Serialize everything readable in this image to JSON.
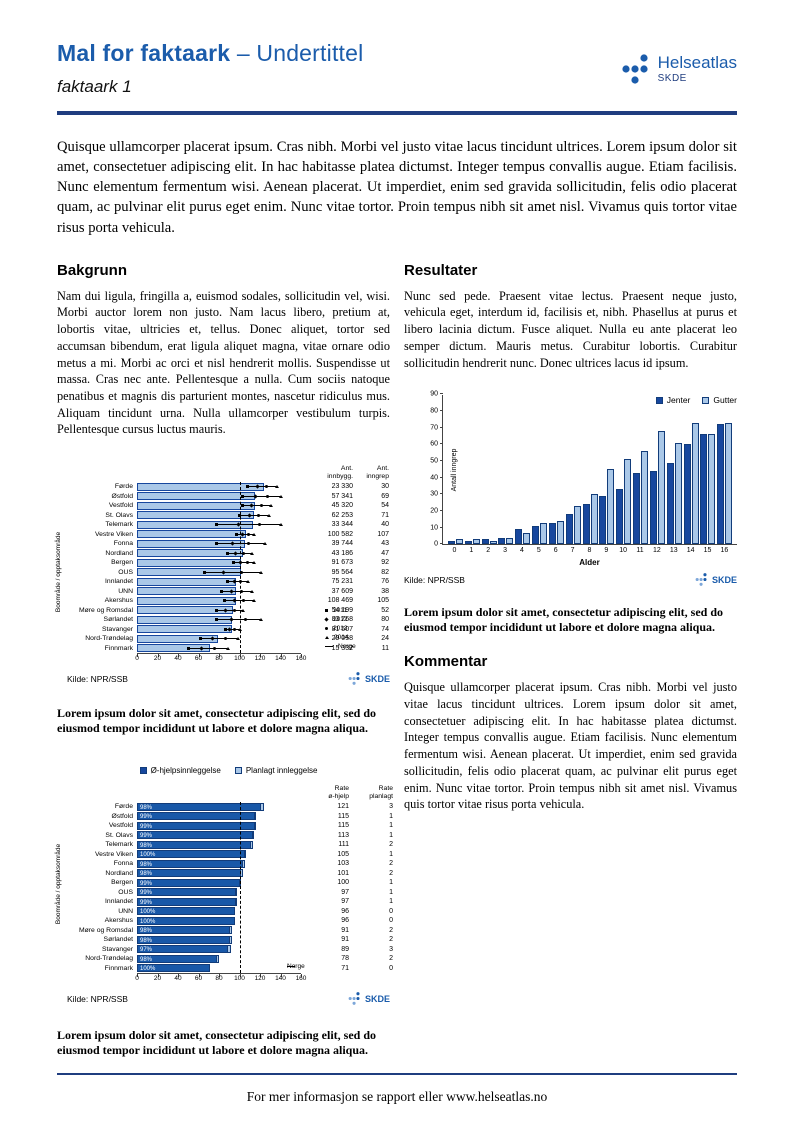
{
  "header": {
    "title": "Mal for faktaark",
    "title_suffix": "– Undertittel",
    "subtitle": "faktaark 1",
    "logo_name": "Helseatlas",
    "logo_sub": "SKDE"
  },
  "intro": "Quisque ullamcorper placerat ipsum. Cras nibh. Morbi vel justo vitae lacus tincidunt ultrices. Lorem ipsum dolor sit amet, consectetuer adipiscing elit. In hac habitasse platea dictumst. Integer tempus convallis augue. Etiam facilisis. Nunc elementum fermentum wisi. Aenean placerat. Ut imperdiet, enim sed gravida sollicitudin, felis odio placerat quam, ac pulvinar elit purus eget enim. Nunc vitae tortor. Proin tempus nibh sit amet nisl. Vivamus quis tortor vitae risus porta vehicula.",
  "sections": {
    "bakgrunn": {
      "heading": "Bakgrunn",
      "body": "Nam dui ligula, fringilla a, euismod sodales, sollicitudin vel, wisi. Morbi auctor lorem non justo. Nam lacus libero, pretium at, lobortis vitae, ultricies et, tellus. Donec aliquet, tortor sed accumsan bibendum, erat ligula aliquet magna, vitae ornare odio metus a mi. Morbi ac orci et nisl hendrerit mollis. Suspendisse ut massa. Cras nec ante. Pellentesque a nulla. Cum sociis natoque penatibus et magnis dis parturient montes, nascetur ridiculus mus. Aliquam tincidunt urna. Nulla ullamcorper vestibulum turpis. Pellentesque cursus luctus mauris."
    },
    "resultater": {
      "heading": "Resultater",
      "body": "Nunc sed pede. Praesent vitae lectus. Praesent neque justo, vehicula eget, interdum id, facilisis et, nibh. Phasellus at purus et libero lacinia dictum. Fusce aliquet. Nulla eu ante placerat leo semper dictum. Mauris metus. Curabitur lobortis. Curabitur sollicitudin hendrerit nunc. Donec ultrices lacus id ipsum."
    },
    "kommentar": {
      "heading": "Kommentar",
      "body": "Quisque ullamcorper placerat ipsum. Cras nibh. Morbi vel justo vitae lacus tincidunt ultrices. Lorem ipsum dolor sit amet, consectetuer adipiscing elit. In hac habitasse platea dictumst. Integer tempus convallis augue. Etiam facilisis. Nunc elementum fermentum wisi. Aenean placerat. Ut imperdiet, enim sed gravida sollicitudin, felis odio placerat quam, ac pulvinar elit purus eget enim. Nunc vitae tortor. Proin tempus nibh sit amet nisl. Vivamus quis tortor vitae risus porta vehicula."
    }
  },
  "captions": {
    "chart1": "Lorem ipsum dolor sit amet, consectetur adipiscing elit, sed do eiusmod tempor incididunt ut labore et dolore magna aliqua.",
    "chart2": "Lorem ipsum dolor sit amet, consectetur adipiscing elit, sed do eiusmod tempor incididunt ut labore et dolore magna aliqua.",
    "chart3": "Lorem ipsum dolor sit amet, consectetur adipiscing elit, sed do eiusmod tempor incididunt ut labore et dolore magna aliqua."
  },
  "footer": {
    "text": "For mer informasjon se rapport eller www.helseatlas.no"
  },
  "colors": {
    "brand_blue": "#1b5cab",
    "navy": "#1f3d7f",
    "bar_dark": "#17479e",
    "bar_light": "#aac8e8"
  },
  "chart_data": [
    {
      "type": "bar",
      "orientation": "horizontal",
      "ylabel": "Boområde / opptaksområde",
      "xlim": [
        0,
        160
      ],
      "xticks": [
        0,
        20,
        40,
        60,
        80,
        100,
        120,
        140,
        160
      ],
      "reference_line": {
        "label": "Norge",
        "value": 100
      },
      "col_headers": [
        "Ant.\ninnbygg.",
        "Ant.\ninngrep"
      ],
      "legend": [
        {
          "label": "2011",
          "marker": "square"
        },
        {
          "label": "2012",
          "marker": "diamond"
        },
        {
          "label": "2013",
          "marker": "circle"
        },
        {
          "label": "2014",
          "marker": "triangle"
        },
        {
          "label": "Norge",
          "marker": "dash"
        }
      ],
      "source": "Kilde: NPR/SSB",
      "rows": [
        {
          "label": "Førde",
          "bar": 124,
          "lo": 108,
          "hi": 136,
          "innbygg": "23 330",
          "inngrep": "30"
        },
        {
          "label": "Østfold",
          "bar": 115,
          "lo": 103,
          "hi": 140,
          "innbygg": "57 341",
          "inngrep": "69"
        },
        {
          "label": "Vestfold",
          "bar": 115,
          "lo": 103,
          "hi": 130,
          "innbygg": "45 320",
          "inngrep": "54"
        },
        {
          "label": "St. Olavs",
          "bar": 114,
          "lo": 100,
          "hi": 128,
          "innbygg": "62 253",
          "inngrep": "71"
        },
        {
          "label": "Telemark",
          "bar": 113,
          "lo": 78,
          "hi": 140,
          "innbygg": "33 344",
          "inngrep": "40"
        },
        {
          "label": "Vestre Viken",
          "bar": 106,
          "lo": 97,
          "hi": 114,
          "innbygg": "100 582",
          "inngrep": "107"
        },
        {
          "label": "Fonna",
          "bar": 105,
          "lo": 78,
          "hi": 124,
          "innbygg": "39 744",
          "inngrep": "43"
        },
        {
          "label": "Nordland",
          "bar": 103,
          "lo": 88,
          "hi": 112,
          "innbygg": "43 186",
          "inngrep": "47"
        },
        {
          "label": "Bergen",
          "bar": 101,
          "lo": 94,
          "hi": 114,
          "innbygg": "91 673",
          "inngrep": "92"
        },
        {
          "label": "OUS",
          "bar": 101,
          "lo": 66,
          "hi": 120,
          "innbygg": "95 564",
          "inngrep": "82"
        },
        {
          "label": "Innlandet",
          "bar": 97,
          "lo": 88,
          "hi": 108,
          "innbygg": "75 231",
          "inngrep": "76"
        },
        {
          "label": "UNN",
          "bar": 97,
          "lo": 82,
          "hi": 112,
          "innbygg": "37 609",
          "inngrep": "38"
        },
        {
          "label": "Akershus",
          "bar": 97,
          "lo": 85,
          "hi": 114,
          "innbygg": "108 469",
          "inngrep": "105"
        },
        {
          "label": "Møre og Romsdal",
          "bar": 94,
          "lo": 78,
          "hi": 103,
          "innbygg": "54 199",
          "inngrep": "52"
        },
        {
          "label": "Sørlandet",
          "bar": 93,
          "lo": 78,
          "hi": 120,
          "innbygg": "83 768",
          "inngrep": "80"
        },
        {
          "label": "Stavanger",
          "bar": 93,
          "lo": 86,
          "hi": 100,
          "innbygg": "81 507",
          "inngrep": "74"
        },
        {
          "label": "Nord-Trøndelag",
          "bar": 79,
          "lo": 62,
          "hi": 98,
          "innbygg": "29 058",
          "inngrep": "24"
        },
        {
          "label": "Finnmark",
          "bar": 71,
          "lo": 50,
          "hi": 88,
          "innbygg": "15 332",
          "inngrep": "11"
        }
      ]
    },
    {
      "type": "bar",
      "orientation": "vertical",
      "categories": [
        "0",
        "1",
        "2",
        "3",
        "4",
        "5",
        "6",
        "7",
        "8",
        "9",
        "10",
        "11",
        "12",
        "13",
        "14",
        "15",
        "16"
      ],
      "series": [
        {
          "name": "Jenter",
          "color": "#17479e",
          "values": [
            2,
            2,
            3,
            4,
            9,
            11,
            13,
            18,
            24,
            29,
            33,
            43,
            44,
            49,
            60,
            66,
            72
          ]
        },
        {
          "name": "Gutter",
          "color": "#aac8e8",
          "values": [
            3,
            3,
            2,
            4,
            7,
            13,
            14,
            23,
            30,
            45,
            51,
            56,
            68,
            61,
            73,
            66,
            73
          ]
        }
      ],
      "xlabel": "Alder",
      "ylabel": "Antall inngrep",
      "ylim": [
        0,
        90
      ],
      "yticks": [
        0,
        10,
        20,
        30,
        40,
        50,
        60,
        70,
        80,
        90
      ],
      "legend_position": "top-right",
      "source": "Kilde: NPR/SSB"
    },
    {
      "type": "bar",
      "orientation": "horizontal-stacked",
      "ylabel": "Boområde / opptaksområde",
      "xlim": [
        0,
        160
      ],
      "xticks": [
        0,
        20,
        40,
        60,
        80,
        100,
        120,
        140,
        160
      ],
      "reference_line": {
        "label": "Norge",
        "value": 100
      },
      "legend": [
        {
          "label": "Ø-hjelpsinnleggelse",
          "color": "#17479e"
        },
        {
          "label": "Planlagt innleggelse",
          "color": "#aac8e8"
        }
      ],
      "col_headers": [
        "Rate\nø-hjelp",
        "Rate\nplanlagt"
      ],
      "source": "Kilde: NPR/SSB",
      "rows": [
        {
          "label": "Førde",
          "pct": "98%",
          "ohjelp": 121,
          "planlagt": 3
        },
        {
          "label": "Østfold",
          "pct": "99%",
          "ohjelp": 115,
          "planlagt": 1
        },
        {
          "label": "Vestfold",
          "pct": "99%",
          "ohjelp": 115,
          "planlagt": 1
        },
        {
          "label": "St. Olavs",
          "pct": "99%",
          "ohjelp": 113,
          "planlagt": 1
        },
        {
          "label": "Telemark",
          "pct": "98%",
          "ohjelp": 111,
          "planlagt": 2
        },
        {
          "label": "Vestre Viken",
          "pct": "100%",
          "ohjelp": 105,
          "planlagt": 1
        },
        {
          "label": "Fonna",
          "pct": "98%",
          "ohjelp": 103,
          "planlagt": 2
        },
        {
          "label": "Nordland",
          "pct": "98%",
          "ohjelp": 101,
          "planlagt": 2
        },
        {
          "label": "Bergen",
          "pct": "99%",
          "ohjelp": 100,
          "planlagt": 1
        },
        {
          "label": "OUS",
          "pct": "99%",
          "ohjelp": 97,
          "planlagt": 1
        },
        {
          "label": "Innlandet",
          "pct": "99%",
          "ohjelp": 97,
          "planlagt": 1
        },
        {
          "label": "UNN",
          "pct": "100%",
          "ohjelp": 96,
          "planlagt": 0
        },
        {
          "label": "Akershus",
          "pct": "100%",
          "ohjelp": 96,
          "planlagt": 0
        },
        {
          "label": "Møre og Romsdal",
          "pct": "98%",
          "ohjelp": 91,
          "planlagt": 2
        },
        {
          "label": "Sørlandet",
          "pct": "98%",
          "ohjelp": 91,
          "planlagt": 2
        },
        {
          "label": "Stavanger",
          "pct": "97%",
          "ohjelp": 89,
          "planlagt": 3
        },
        {
          "label": "Nord-Trøndelag",
          "pct": "98%",
          "ohjelp": 78,
          "planlagt": 2
        },
        {
          "label": "Finnmark",
          "pct": "100%",
          "ohjelp": 71,
          "planlagt": 0
        }
      ]
    }
  ]
}
